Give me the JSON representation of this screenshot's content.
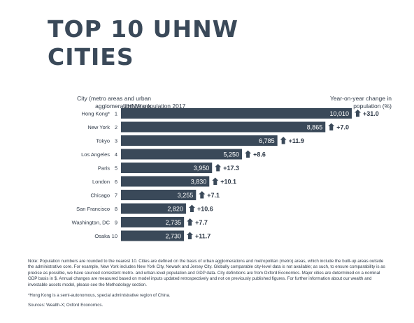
{
  "title": "TOP 10 UHNW CITIES",
  "header_city": "City (metro areas and urban agglomerations)/rank",
  "header_population": "UHNW population 2017",
  "header_change": "Year-on-year change in population (%)",
  "chart_data": {
    "type": "bar",
    "orientation": "horizontal",
    "categories": [
      "Hong Kong*",
      "New York",
      "Tokyo",
      "Los Angeles",
      "Paris",
      "London",
      "Chicago",
      "San Francisco",
      "Washington, DC",
      "Osaka"
    ],
    "ranks": [
      "1",
      "2",
      "3",
      "4",
      "5",
      "6",
      "7",
      "8",
      "9",
      "10"
    ],
    "values": [
      10010,
      8865,
      6785,
      5250,
      3950,
      3830,
      3255,
      2820,
      2735,
      2730
    ],
    "value_labels": [
      "10,010",
      "8,865",
      "6,785",
      "5,250",
      "3,950",
      "3,830",
      "3,255",
      "2,820",
      "2,735",
      "2,730"
    ],
    "changes": [
      "+31.0",
      "+7.0",
      "+11.9",
      "+8.6",
      "+17.3",
      "+10.1",
      "+7.1",
      "+10.6",
      "+7.7",
      "+11.7"
    ],
    "xlim": [
      0,
      10010
    ],
    "grid": false,
    "bar_color": "#3a4959",
    "arrow_color": "#3a4959"
  },
  "notes": {
    "main": "Note: Population numbers are rounded to the nearest 10. Cities are defined on the basis of urban agglomerations and metropolitan (metro) areas, which include the built-up areas outside the administrative core. For example, New York includes New York City, Newark and Jersey City. Globally comparable city-level data is not available; as such, to ensure comparability is as precise as possible, we have sourced consistent metro- and urban-level population and GDP data. City definitions are from Oxford Economics. Major cities are determined on a nominal GDP basis in $. Annual changes are measured based on model inputs updated retrospectively and not on previously published figures. For further information about our wealth and investable assets model, please see the Methodology section.",
    "footnote": "*Hong Kong is a semi-autonomous, special administrative region of China.",
    "sources": "Sources: Wealth-X; Oxford Economics."
  }
}
